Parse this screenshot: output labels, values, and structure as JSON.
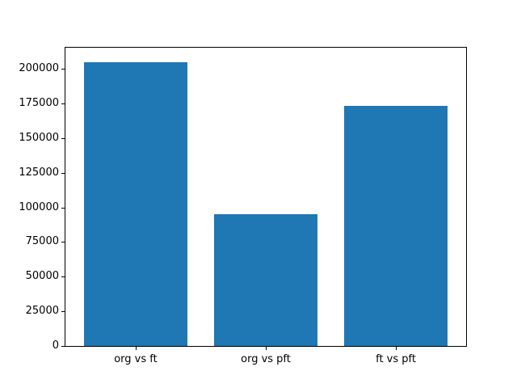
{
  "figure": {
    "background": "#ffffff"
  },
  "chart_data": {
    "type": "bar",
    "categories": [
      "org vs ft",
      "org vs pft",
      "ft vs pft"
    ],
    "values": [
      205000,
      95000,
      173000
    ],
    "title": "",
    "xlabel": "",
    "ylabel": "",
    "ylim": [
      0,
      215250
    ],
    "yticks": [
      0,
      25000,
      50000,
      75000,
      100000,
      125000,
      150000,
      175000,
      200000
    ],
    "bar_color": "#1f77b4",
    "axis_color": "#000000",
    "text_color": "#000000",
    "bar_width_fraction": 0.8,
    "x_margin": 0.05,
    "grid": false,
    "legend": null
  }
}
